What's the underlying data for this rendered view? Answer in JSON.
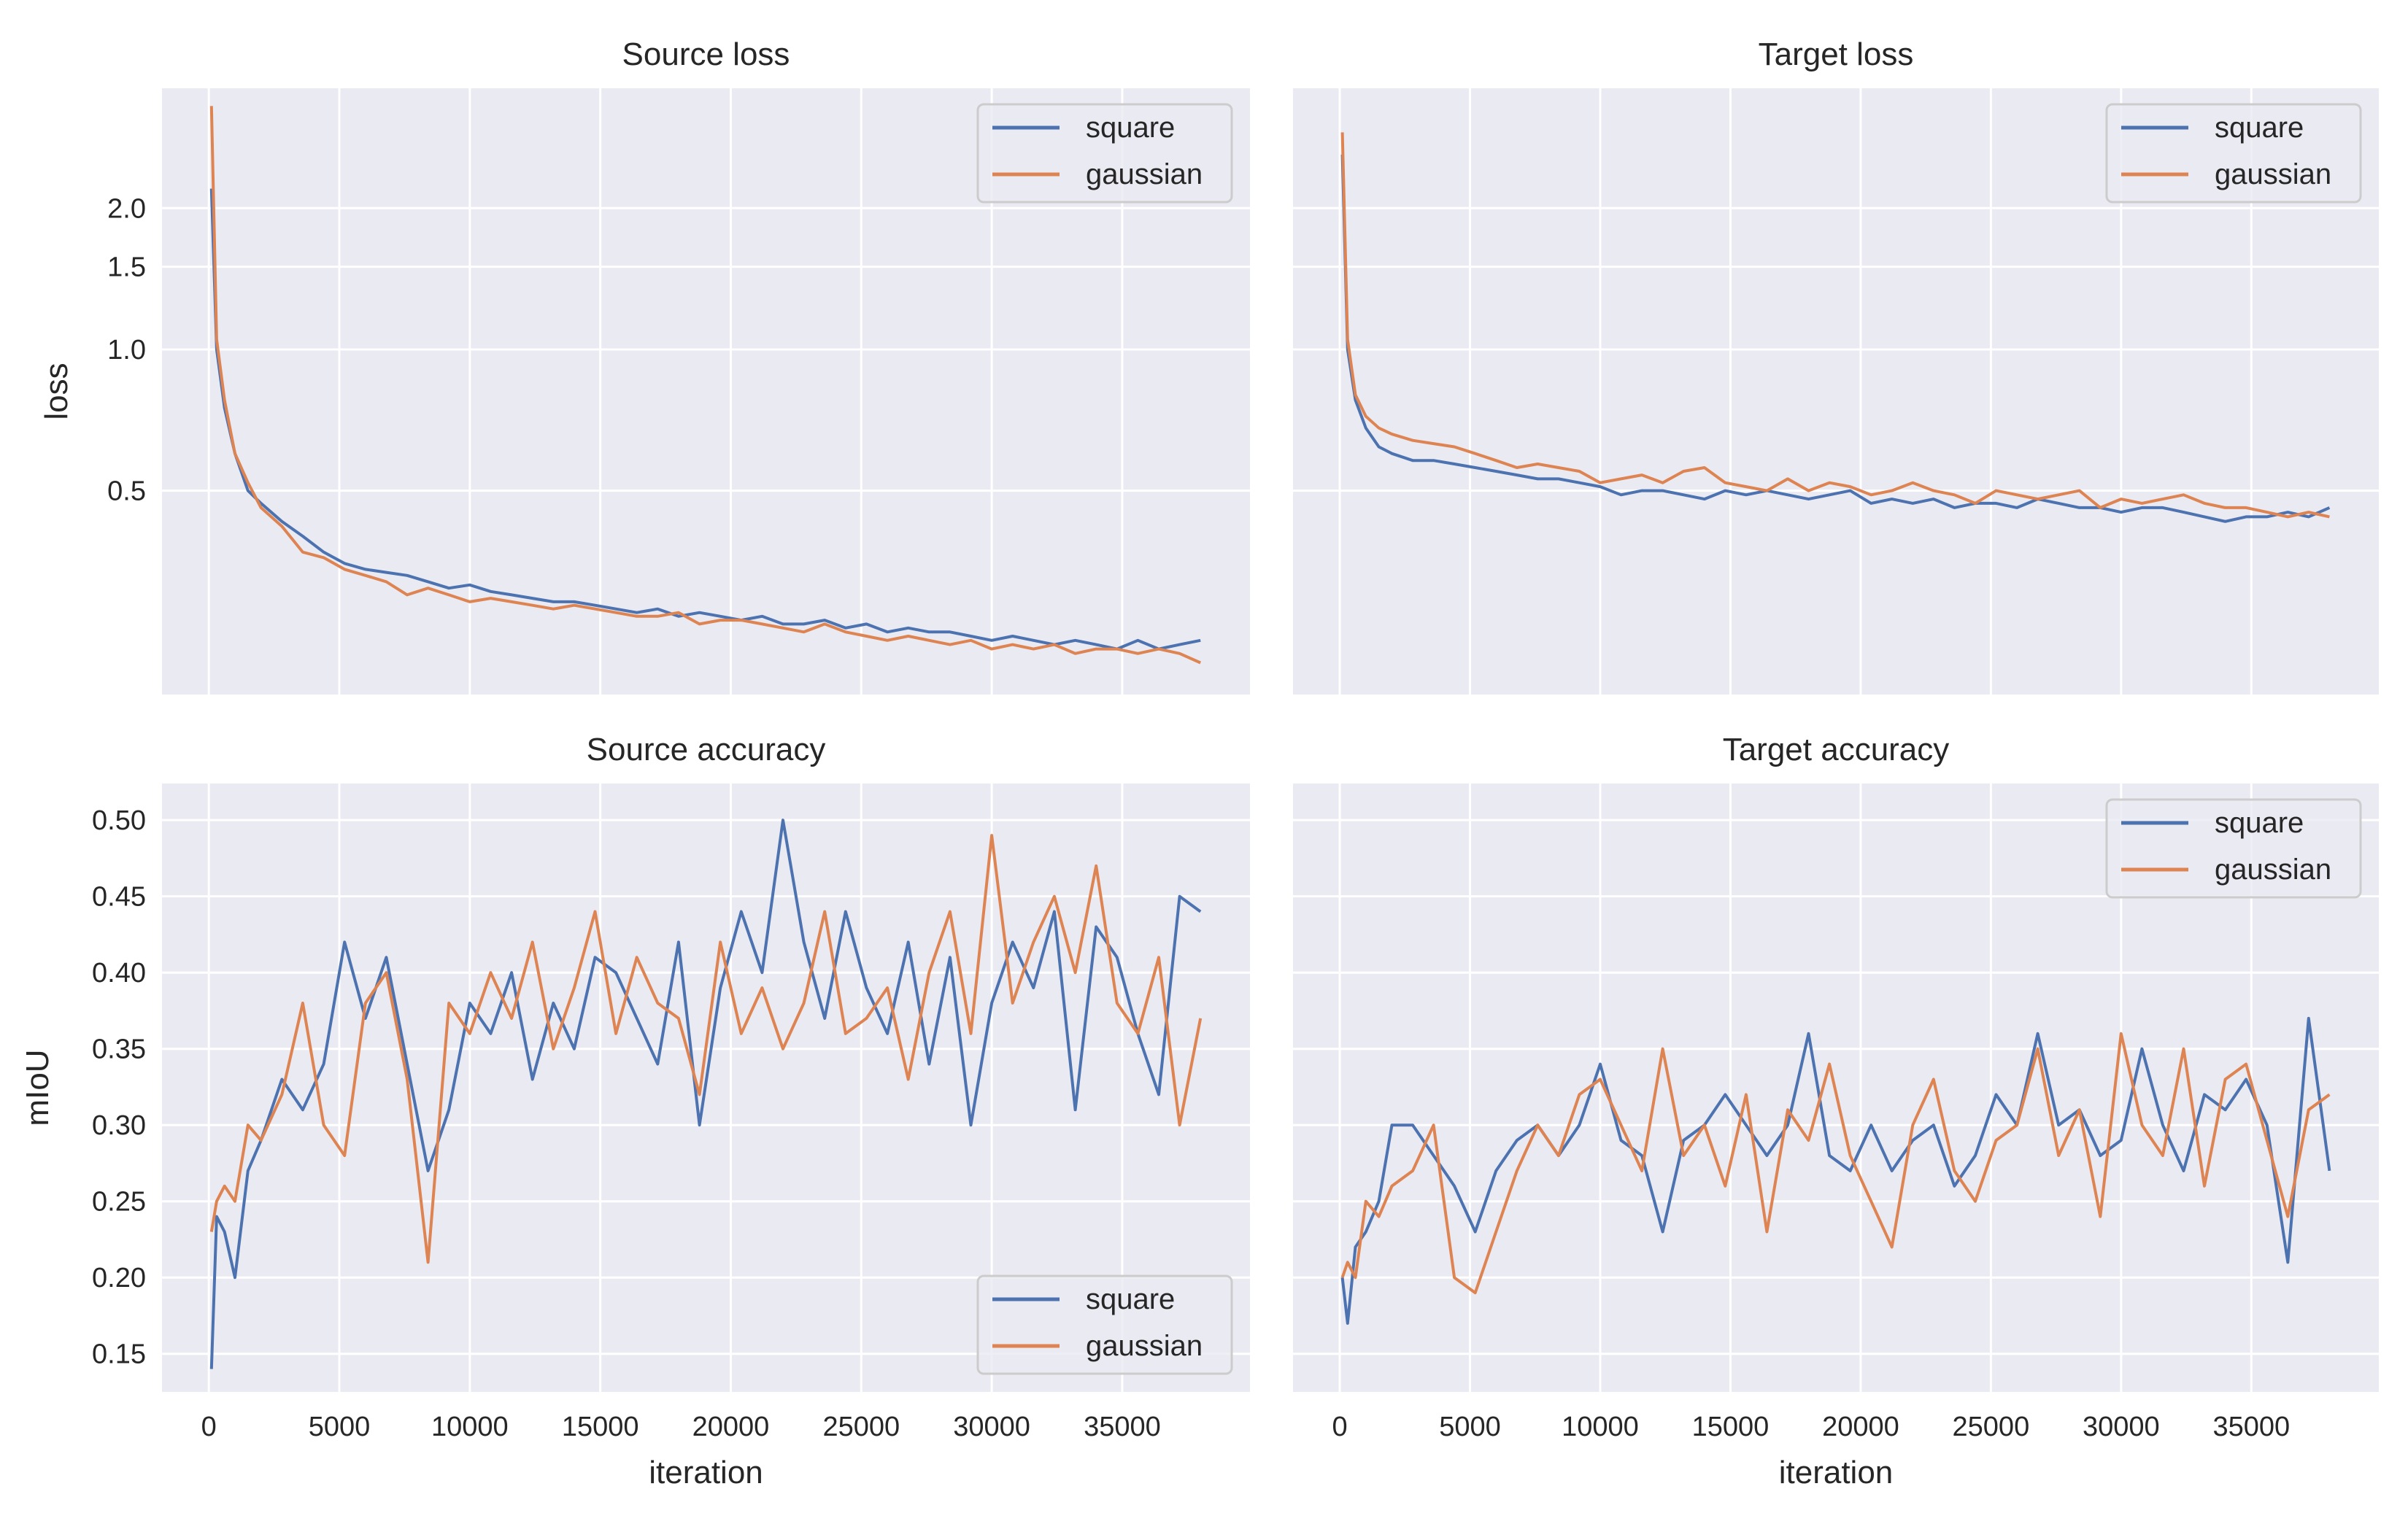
{
  "colors": {
    "square": "#4c72b0",
    "gaussian": "#dd8452",
    "axes_bg": "#eaeaf2",
    "grid": "#ffffff"
  },
  "chart_data": [
    {
      "type": "line",
      "title": "Source loss",
      "xlabel": "",
      "ylabel": "loss",
      "yscale": "log",
      "xlim": [
        -1795,
        39895
      ],
      "ylim": [
        0.184,
        3.6
      ],
      "xticks": [
        0,
        5000,
        10000,
        15000,
        20000,
        25000,
        30000,
        35000
      ],
      "xtick_labels_shown": false,
      "yticks": [
        0.5,
        1.0,
        1.5,
        2.0
      ],
      "ytick_labels": [
        "0.5",
        "1.0",
        "1.5",
        "2.0"
      ],
      "grid": true,
      "legend": "upper-right",
      "x": [
        100,
        300,
        600,
        1000,
        1500,
        2000,
        2800,
        3600,
        4400,
        5200,
        6000,
        6800,
        7600,
        8400,
        9200,
        10000,
        10800,
        11600,
        12400,
        13200,
        14000,
        14800,
        15600,
        16400,
        17200,
        18000,
        18800,
        19600,
        20400,
        21200,
        22000,
        22800,
        23600,
        24400,
        25200,
        26000,
        26800,
        27600,
        28400,
        29200,
        30000,
        30800,
        31600,
        32400,
        33200,
        34000,
        34800,
        35600,
        36400,
        37200,
        38000
      ],
      "series": [
        {
          "name": "square",
          "values": [
            2.2,
            1.0,
            0.75,
            0.6,
            0.5,
            0.47,
            0.43,
            0.4,
            0.37,
            0.35,
            0.34,
            0.335,
            0.33,
            0.32,
            0.31,
            0.315,
            0.305,
            0.3,
            0.295,
            0.29,
            0.29,
            0.285,
            0.28,
            0.275,
            0.28,
            0.27,
            0.275,
            0.27,
            0.265,
            0.27,
            0.26,
            0.26,
            0.265,
            0.255,
            0.26,
            0.25,
            0.255,
            0.25,
            0.25,
            0.245,
            0.24,
            0.245,
            0.24,
            0.235,
            0.24,
            0.235,
            0.23,
            0.24,
            0.23,
            0.235,
            0.24
          ]
        },
        {
          "name": "gaussian",
          "values": [
            3.3,
            1.05,
            0.78,
            0.6,
            0.52,
            0.46,
            0.42,
            0.37,
            0.36,
            0.34,
            0.33,
            0.32,
            0.3,
            0.31,
            0.3,
            0.29,
            0.295,
            0.29,
            0.285,
            0.28,
            0.285,
            0.28,
            0.275,
            0.27,
            0.27,
            0.275,
            0.26,
            0.265,
            0.265,
            0.26,
            0.255,
            0.25,
            0.26,
            0.25,
            0.245,
            0.24,
            0.245,
            0.24,
            0.235,
            0.24,
            0.23,
            0.235,
            0.23,
            0.235,
            0.225,
            0.23,
            0.23,
            0.225,
            0.23,
            0.225,
            0.215
          ]
        }
      ]
    },
    {
      "type": "line",
      "title": "Target loss",
      "xlabel": "",
      "ylabel": "",
      "yscale": "log",
      "xlim": [
        -1795,
        39895
      ],
      "ylim": [
        0.184,
        3.6
      ],
      "xticks": [
        0,
        5000,
        10000,
        15000,
        20000,
        25000,
        30000,
        35000
      ],
      "xtick_labels_shown": false,
      "yticks": [
        0.5,
        1.0,
        1.5,
        2.0
      ],
      "ytick_labels_shown": false,
      "grid": true,
      "legend": "upper-right",
      "x": [
        100,
        300,
        600,
        1000,
        1500,
        2000,
        2800,
        3600,
        4400,
        5200,
        6000,
        6800,
        7600,
        8400,
        9200,
        10000,
        10800,
        11600,
        12400,
        13200,
        14000,
        14800,
        15600,
        16400,
        17200,
        18000,
        18800,
        19600,
        20400,
        21200,
        22000,
        22800,
        23600,
        24400,
        25200,
        26000,
        26800,
        27600,
        28400,
        29200,
        30000,
        30800,
        31600,
        32400,
        33200,
        34000,
        34800,
        35600,
        36400,
        37200,
        38000
      ],
      "series": [
        {
          "name": "square",
          "values": [
            2.6,
            1.0,
            0.78,
            0.68,
            0.62,
            0.6,
            0.58,
            0.58,
            0.57,
            0.56,
            0.55,
            0.54,
            0.53,
            0.53,
            0.52,
            0.51,
            0.49,
            0.5,
            0.5,
            0.49,
            0.48,
            0.5,
            0.49,
            0.5,
            0.49,
            0.48,
            0.49,
            0.5,
            0.47,
            0.48,
            0.47,
            0.48,
            0.46,
            0.47,
            0.47,
            0.46,
            0.48,
            0.47,
            0.46,
            0.46,
            0.45,
            0.46,
            0.46,
            0.45,
            0.44,
            0.43,
            0.44,
            0.44,
            0.45,
            0.44,
            0.46
          ]
        },
        {
          "name": "gaussian",
          "values": [
            2.9,
            1.05,
            0.8,
            0.72,
            0.68,
            0.66,
            0.64,
            0.63,
            0.62,
            0.6,
            0.58,
            0.56,
            0.57,
            0.56,
            0.55,
            0.52,
            0.53,
            0.54,
            0.52,
            0.55,
            0.56,
            0.52,
            0.51,
            0.5,
            0.53,
            0.5,
            0.52,
            0.51,
            0.49,
            0.5,
            0.52,
            0.5,
            0.49,
            0.47,
            0.5,
            0.49,
            0.48,
            0.49,
            0.5,
            0.46,
            0.48,
            0.47,
            0.48,
            0.49,
            0.47,
            0.46,
            0.46,
            0.45,
            0.44,
            0.45,
            0.44
          ]
        }
      ]
    },
    {
      "type": "line",
      "title": "Source accuracy",
      "xlabel": "iteration",
      "ylabel": "mIoU",
      "yscale": "linear",
      "xlim": [
        -1795,
        39895
      ],
      "ylim": [
        0.125,
        0.524
      ],
      "xticks": [
        0,
        5000,
        10000,
        15000,
        20000,
        25000,
        30000,
        35000
      ],
      "xtick_labels": [
        "0",
        "5000",
        "10000",
        "15000",
        "20000",
        "25000",
        "30000",
        "35000"
      ],
      "yticks": [
        0.15,
        0.2,
        0.25,
        0.3,
        0.35,
        0.4,
        0.45,
        0.5
      ],
      "ytick_labels": [
        "0.15",
        "0.20",
        "0.25",
        "0.30",
        "0.35",
        "0.40",
        "0.45",
        "0.50"
      ],
      "grid": true,
      "legend": "lower-right",
      "x": [
        100,
        300,
        600,
        1000,
        1500,
        2000,
        2800,
        3600,
        4400,
        5200,
        6000,
        6800,
        7600,
        8400,
        9200,
        10000,
        10800,
        11600,
        12400,
        13200,
        14000,
        14800,
        15600,
        16400,
        17200,
        18000,
        18800,
        19600,
        20400,
        21200,
        22000,
        22800,
        23600,
        24400,
        25200,
        26000,
        26800,
        27600,
        28400,
        29200,
        30000,
        30800,
        31600,
        32400,
        33200,
        34000,
        34800,
        35600,
        36400,
        37200,
        38000
      ],
      "series": [
        {
          "name": "square",
          "values": [
            0.14,
            0.24,
            0.23,
            0.2,
            0.27,
            0.29,
            0.33,
            0.31,
            0.34,
            0.42,
            0.37,
            0.41,
            0.34,
            0.27,
            0.31,
            0.38,
            0.36,
            0.4,
            0.33,
            0.38,
            0.35,
            0.41,
            0.4,
            0.37,
            0.34,
            0.42,
            0.3,
            0.39,
            0.44,
            0.4,
            0.5,
            0.42,
            0.37,
            0.44,
            0.39,
            0.36,
            0.42,
            0.34,
            0.41,
            0.3,
            0.38,
            0.42,
            0.39,
            0.44,
            0.31,
            0.43,
            0.41,
            0.36,
            0.32,
            0.45,
            0.44
          ]
        },
        {
          "name": "gaussian",
          "values": [
            0.23,
            0.25,
            0.26,
            0.25,
            0.3,
            0.29,
            0.32,
            0.38,
            0.3,
            0.28,
            0.38,
            0.4,
            0.33,
            0.21,
            0.38,
            0.36,
            0.4,
            0.37,
            0.42,
            0.35,
            0.39,
            0.44,
            0.36,
            0.41,
            0.38,
            0.37,
            0.32,
            0.42,
            0.36,
            0.39,
            0.35,
            0.38,
            0.44,
            0.36,
            0.37,
            0.39,
            0.33,
            0.4,
            0.44,
            0.36,
            0.49,
            0.38,
            0.42,
            0.45,
            0.4,
            0.47,
            0.38,
            0.36,
            0.41,
            0.3,
            0.37
          ]
        }
      ]
    },
    {
      "type": "line",
      "title": "Target accuracy",
      "xlabel": "iteration",
      "ylabel": "",
      "yscale": "linear",
      "xlim": [
        -1795,
        39895
      ],
      "ylim": [
        0.125,
        0.524
      ],
      "xticks": [
        0,
        5000,
        10000,
        15000,
        20000,
        25000,
        30000,
        35000
      ],
      "xtick_labels": [
        "0",
        "5000",
        "10000",
        "15000",
        "20000",
        "25000",
        "30000",
        "35000"
      ],
      "yticks": [
        0.15,
        0.2,
        0.25,
        0.3,
        0.35,
        0.4,
        0.45,
        0.5
      ],
      "ytick_labels_shown": false,
      "grid": true,
      "legend": "upper-right",
      "x": [
        100,
        300,
        600,
        1000,
        1500,
        2000,
        2800,
        3600,
        4400,
        5200,
        6000,
        6800,
        7600,
        8400,
        9200,
        10000,
        10800,
        11600,
        12400,
        13200,
        14000,
        14800,
        15600,
        16400,
        17200,
        18000,
        18800,
        19600,
        20400,
        21200,
        22000,
        22800,
        23600,
        24400,
        25200,
        26000,
        26800,
        27600,
        28400,
        29200,
        30000,
        30800,
        31600,
        32400,
        33200,
        34000,
        34800,
        35600,
        36400,
        37200,
        38000
      ],
      "series": [
        {
          "name": "square",
          "values": [
            0.2,
            0.17,
            0.22,
            0.23,
            0.25,
            0.3,
            0.3,
            0.28,
            0.26,
            0.23,
            0.27,
            0.29,
            0.3,
            0.28,
            0.3,
            0.34,
            0.29,
            0.28,
            0.23,
            0.29,
            0.3,
            0.32,
            0.3,
            0.28,
            0.3,
            0.36,
            0.28,
            0.27,
            0.3,
            0.27,
            0.29,
            0.3,
            0.26,
            0.28,
            0.32,
            0.3,
            0.36,
            0.3,
            0.31,
            0.28,
            0.29,
            0.35,
            0.3,
            0.27,
            0.32,
            0.31,
            0.33,
            0.3,
            0.21,
            0.37,
            0.27
          ]
        },
        {
          "name": "gaussian",
          "values": [
            0.2,
            0.21,
            0.2,
            0.25,
            0.24,
            0.26,
            0.27,
            0.3,
            0.2,
            0.19,
            0.23,
            0.27,
            0.3,
            0.28,
            0.32,
            0.33,
            0.3,
            0.27,
            0.35,
            0.28,
            0.3,
            0.26,
            0.32,
            0.23,
            0.31,
            0.29,
            0.34,
            0.28,
            0.25,
            0.22,
            0.3,
            0.33,
            0.27,
            0.25,
            0.29,
            0.3,
            0.35,
            0.28,
            0.31,
            0.24,
            0.36,
            0.3,
            0.28,
            0.35,
            0.26,
            0.33,
            0.34,
            0.29,
            0.24,
            0.31,
            0.32
          ]
        }
      ]
    }
  ]
}
